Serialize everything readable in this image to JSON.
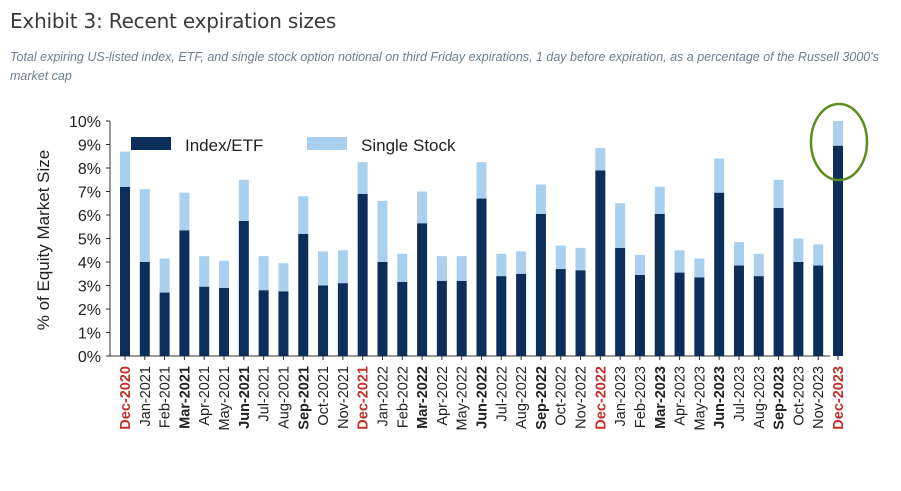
{
  "header": {
    "title": "Exhibit 3: Recent expiration sizes",
    "subtitle": "Total expiring US-listed index, ETF, and single stock option notional on third Friday expirations, 1 day before expiration, as a percentage of the Russell 3000's market cap"
  },
  "colors": {
    "index_etf": "#0b2e5b",
    "single_stock": "#a9d1ef",
    "highlight_label": "#c0312b",
    "circle": "#5a8f1f"
  },
  "chart_data": {
    "type": "bar",
    "stacked": true,
    "title": "Exhibit 3: Recent expiration sizes",
    "ylabel": "% of Equity Market Size",
    "xlabel": "",
    "ylim": [
      0,
      10
    ],
    "yticks": [
      "0%",
      "1%",
      "2%",
      "3%",
      "4%",
      "5%",
      "6%",
      "7%",
      "8%",
      "9%",
      "10%"
    ],
    "grid": false,
    "legend_position": "top-left",
    "categories": [
      "Dec-2020",
      "Jan-2021",
      "Feb-2021",
      "Mar-2021",
      "Apr-2021",
      "May-2021",
      "Jun-2021",
      "Jul-2021",
      "Aug-2021",
      "Sep-2021",
      "Oct-2021",
      "Nov-2021",
      "Dec-2021",
      "Jan-2022",
      "Feb-2022",
      "Mar-2022",
      "Apr-2022",
      "May-2022",
      "Jun-2022",
      "Jul-2022",
      "Aug-2022",
      "Sep-2022",
      "Oct-2022",
      "Nov-2022",
      "Dec-2022",
      "Jan-2023",
      "Feb-2023",
      "Mar-2023",
      "Apr-2023",
      "May-2023",
      "Jun-2023",
      "Jul-2023",
      "Aug-2023",
      "Sep-2023",
      "Oct-2023",
      "Nov-2023",
      "Dec-2023"
    ],
    "label_style": [
      "red",
      "normal",
      "normal",
      "bold",
      "normal",
      "normal",
      "bold",
      "normal",
      "normal",
      "bold",
      "normal",
      "normal",
      "red",
      "normal",
      "normal",
      "bold",
      "normal",
      "normal",
      "bold",
      "normal",
      "normal",
      "bold",
      "normal",
      "normal",
      "red",
      "normal",
      "normal",
      "bold",
      "normal",
      "normal",
      "bold",
      "normal",
      "normal",
      "bold",
      "normal",
      "normal",
      "red"
    ],
    "series": [
      {
        "name": "Index/ETF",
        "values": [
          7.2,
          4.0,
          2.7,
          5.35,
          2.95,
          2.9,
          5.75,
          2.8,
          2.75,
          5.2,
          3.0,
          3.1,
          6.9,
          4.0,
          3.15,
          5.65,
          3.2,
          3.2,
          6.7,
          3.4,
          3.5,
          6.05,
          3.7,
          3.65,
          7.9,
          4.6,
          3.45,
          6.05,
          3.55,
          3.35,
          6.95,
          3.85,
          3.4,
          6.3,
          4.0,
          3.85,
          8.95
        ]
      },
      {
        "name": "Single Stock",
        "values": [
          1.5,
          3.1,
          1.45,
          1.6,
          1.3,
          1.15,
          1.75,
          1.45,
          1.2,
          1.6,
          1.45,
          1.4,
          1.35,
          2.6,
          1.2,
          1.35,
          1.05,
          1.05,
          1.55,
          0.95,
          0.95,
          1.25,
          1.0,
          0.95,
          0.95,
          1.9,
          0.85,
          1.15,
          0.95,
          0.8,
          1.45,
          1.0,
          0.95,
          1.2,
          1.0,
          0.9,
          1.05
        ]
      }
    ],
    "annotations": [
      {
        "type": "circle",
        "target": "Dec-2023",
        "description": "highlighted latest expiration"
      }
    ]
  }
}
